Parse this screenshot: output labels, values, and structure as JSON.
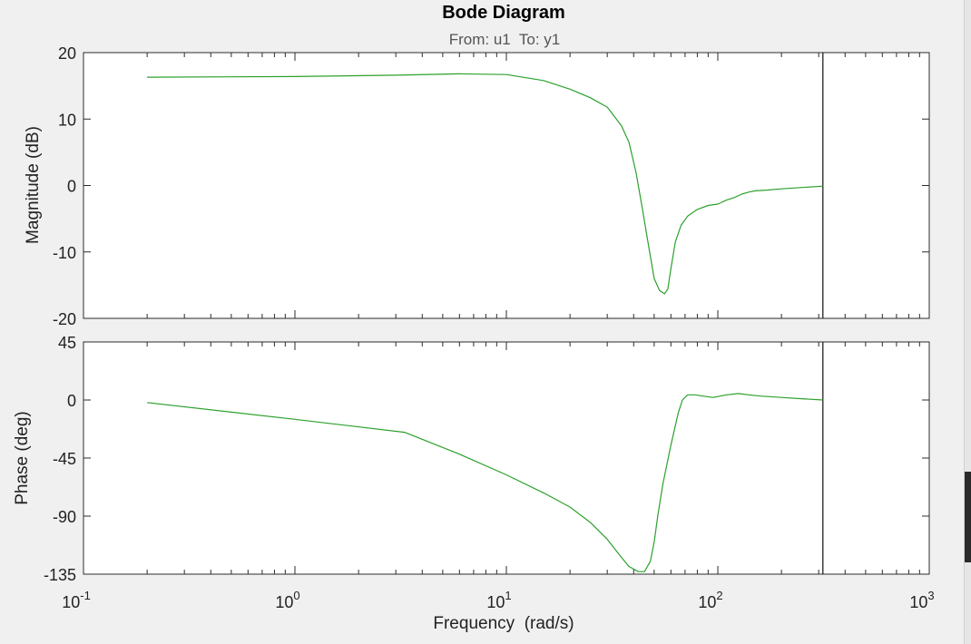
{
  "chart_data": {
    "type": "line",
    "title": "Bode Diagram",
    "subtitle": "From: u1  To: y1",
    "xlabel": "Frequency  (rad/s)",
    "xscale": "log",
    "xlim": [
      0.1,
      1000
    ],
    "x_ticks": [
      {
        "value": 0.1,
        "base": "10",
        "exp": "-1"
      },
      {
        "value": 1,
        "base": "10",
        "exp": "0"
      },
      {
        "value": 10,
        "base": "10",
        "exp": "1"
      },
      {
        "value": 100,
        "base": "10",
        "exp": "2"
      },
      {
        "value": 1000,
        "base": "10",
        "exp": "3"
      }
    ],
    "marker_line_x": 314,
    "line_color": "#2ca02c",
    "panels": [
      {
        "name": "magnitude",
        "ylabel": "Magnitude (dB)",
        "ylim": [
          -20,
          20
        ],
        "yticks": [
          20,
          10,
          0,
          -10,
          -20
        ],
        "series": {
          "name": "magnitude",
          "x": [
            0.2,
            1,
            3,
            6,
            10,
            15,
            20,
            25,
            30,
            35,
            38,
            41,
            44,
            47,
            50,
            53,
            56,
            58,
            60,
            63,
            67,
            72,
            80,
            90,
            100,
            110,
            120,
            130,
            140,
            150,
            170,
            200,
            250,
            314
          ],
          "y": [
            16.3,
            16.4,
            16.6,
            16.8,
            16.7,
            15.8,
            14.5,
            13.2,
            11.8,
            9.0,
            6.5,
            2.0,
            -3.5,
            -9.0,
            -14.0,
            -15.8,
            -16.3,
            -15.6,
            -12.5,
            -8.5,
            -6.0,
            -4.6,
            -3.6,
            -3.0,
            -2.8,
            -2.2,
            -1.8,
            -1.3,
            -1.0,
            -0.8,
            -0.7,
            -0.5,
            -0.3,
            -0.1
          ]
        }
      },
      {
        "name": "phase",
        "ylabel": "Phase (deg)",
        "ylim": [
          -135,
          45
        ],
        "yticks": [
          45,
          0,
          -45,
          -90,
          -135
        ],
        "series": {
          "name": "phase",
          "x": [
            0.2,
            1,
            3.3,
            6,
            10,
            15,
            20,
            25,
            30,
            35,
            38,
            42,
            45,
            48,
            50,
            52,
            55,
            60,
            65,
            68,
            72,
            78,
            85,
            95,
            110,
            125,
            140,
            160,
            200,
            250,
            314
          ],
          "y": [
            -2,
            -15,
            -25,
            -42,
            -58,
            -72,
            -83,
            -95,
            -108,
            -122,
            -129,
            -133,
            -133,
            -125,
            -110,
            -90,
            -65,
            -35,
            -10,
            0,
            4,
            4,
            3,
            2,
            4,
            5,
            4,
            3,
            2,
            1,
            0
          ]
        }
      }
    ]
  }
}
